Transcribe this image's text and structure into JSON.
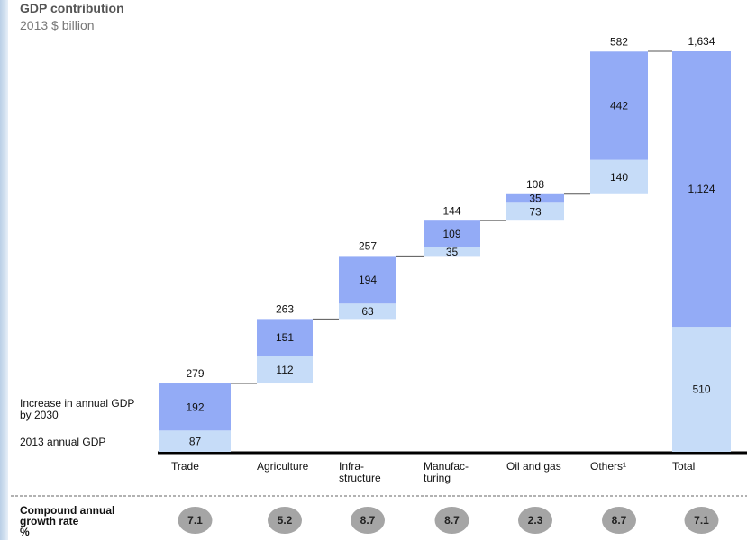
{
  "chart_data": {
    "type": "waterfall",
    "title": "GDP contribution",
    "subtitle": "2013 $ billion",
    "categories": [
      "Trade",
      "Agriculture",
      "Infra-\nstructure",
      "Manufac-\nturing",
      "Oil and gas",
      "Others¹",
      "Total"
    ],
    "series": [
      {
        "name": "2013 annual GDP",
        "color": "#c6dcf8",
        "values": [
          87,
          112,
          63,
          35,
          73,
          140,
          510
        ]
      },
      {
        "name": "Increase in annual GDP\nby 2030",
        "color": "#93abf6",
        "values": [
          192,
          151,
          194,
          109,
          35,
          442,
          1124
        ],
        "value_labels": [
          "192",
          "151",
          "194",
          "109",
          "35",
          "442",
          "1,124"
        ]
      }
    ],
    "totals": [
      279,
      263,
      257,
      144,
      108,
      582,
      1634
    ],
    "total_labels": [
      "279",
      "263",
      "257",
      "144",
      "108",
      "582",
      "1,634"
    ],
    "growth_label": "Compound annual\ngrowth rate\n%",
    "growth_rates": [
      7.1,
      5.2,
      8.7,
      8.7,
      2.3,
      8.7,
      7.1
    ],
    "ylim": [
      0,
      1650
    ]
  }
}
